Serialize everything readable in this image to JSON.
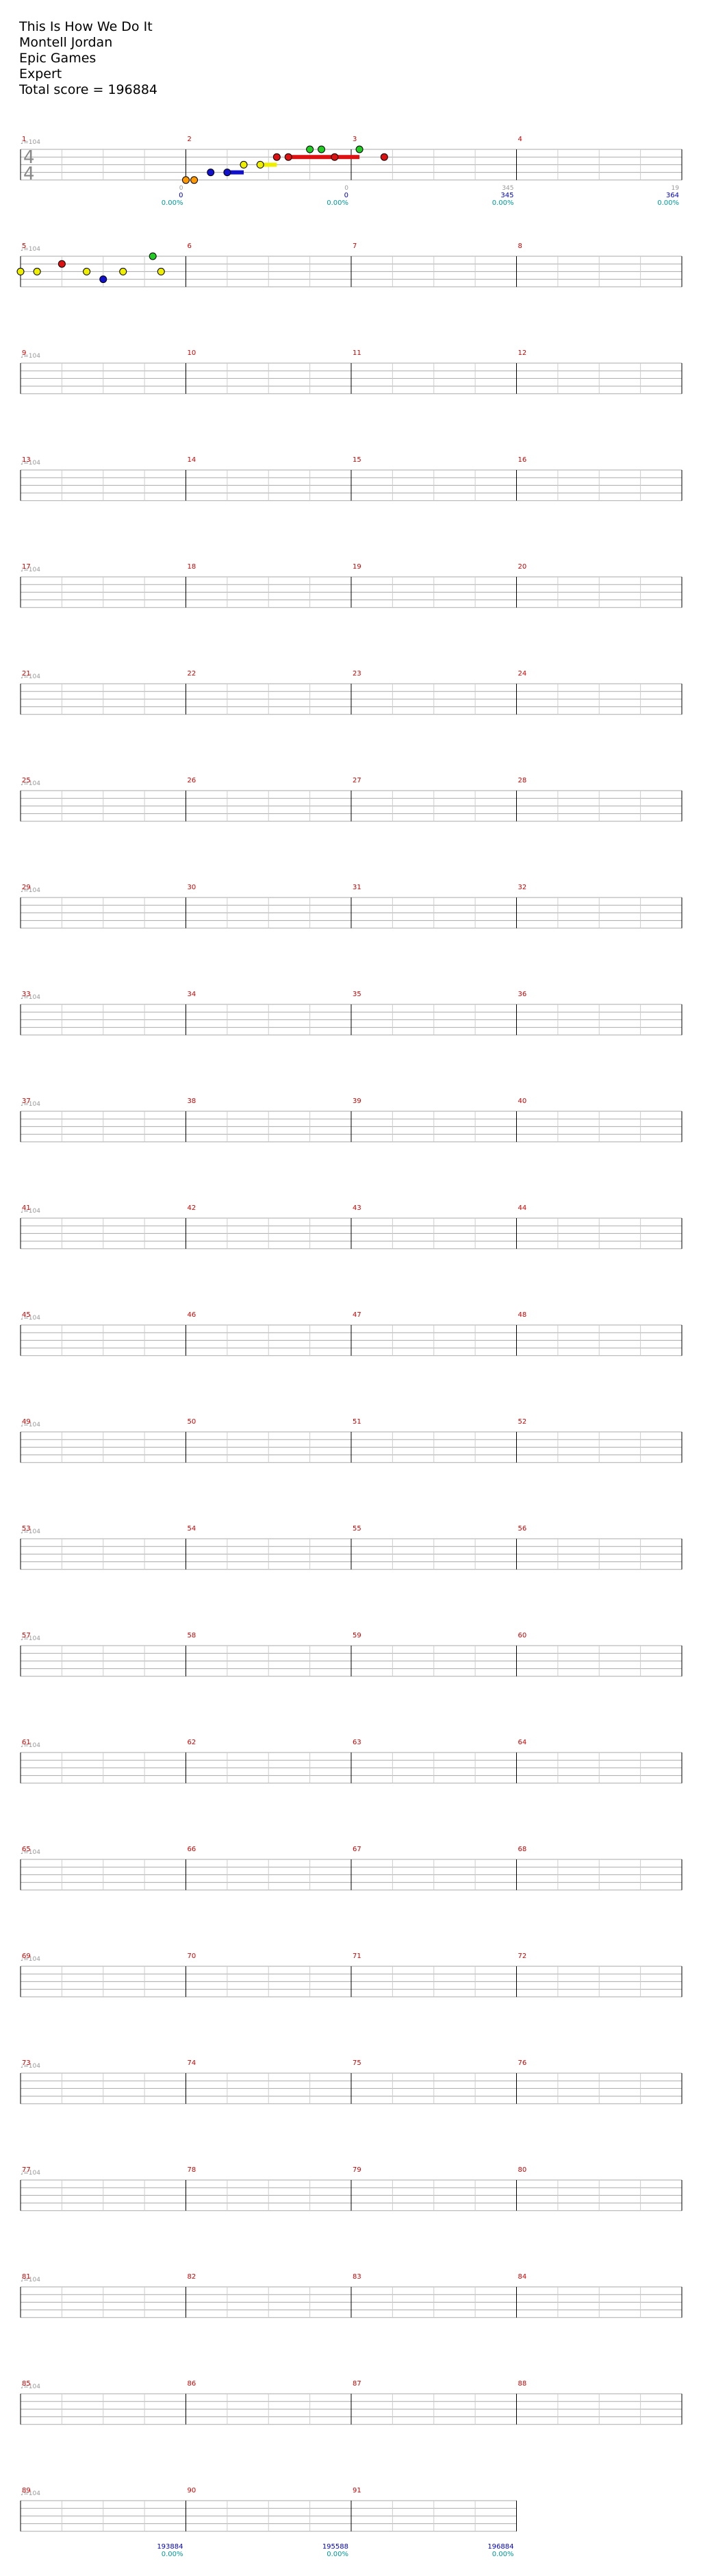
{
  "song": {
    "title": "This Is How We Do It",
    "artist": "Montell Jordan",
    "charter": "Epic Games",
    "difficulty": "Expert",
    "total_score_label": "Total score = 196884"
  },
  "time_signature": {
    "top": "4",
    "bottom": "4"
  },
  "tempo_label": "♩=104",
  "colors": {
    "green": "#22cc22",
    "red": "#dd1111",
    "yellow": "#eeee00",
    "blue": "#1111cc",
    "orange": "#ff9900",
    "overdrive_phrase": "#90ee90",
    "activation": "#8080ff",
    "measure_number": "#cc0000",
    "score": "#0000cc",
    "percent": "#009999",
    "gray": "#999999"
  },
  "measures": [
    {
      "n": "1",
      "notes": [],
      "gray": "0",
      "score": "0",
      "pct": "0.00%"
    },
    {
      "n": "2",
      "notes": [
        {
          "p": 0.0,
          "l": 4
        },
        {
          "p": 0.05,
          "l": 4
        },
        {
          "p": 0.15,
          "l": 3
        },
        {
          "p": 0.25,
          "l": 3
        },
        {
          "p": 0.35,
          "l": 2
        },
        {
          "p": 0.45,
          "l": 2
        },
        {
          "p": 0.55,
          "l": 1
        },
        {
          "p": 0.62,
          "l": 1
        },
        {
          "p": 0.75,
          "l": 0
        },
        {
          "p": 0.82,
          "l": 0
        },
        {
          "p": 0.9,
          "l": 1
        }
      ],
      "sust": [
        {
          "l": 1,
          "a": 0.62,
          "b": 1.05
        },
        {
          "l": 2,
          "a": 0.45,
          "b": 0.55
        },
        {
          "l": 3,
          "a": 0.25,
          "b": 0.35
        }
      ],
      "gray": "0",
      "score": "0",
      "pct": "0.00%"
    },
    {
      "n": "3",
      "notes": [
        {
          "p": 0.05,
          "l": 0
        },
        {
          "p": 0.2,
          "l": 1
        }
      ],
      "gray": "345",
      "score": "345",
      "pct": "0.00%"
    },
    {
      "n": "4",
      "notes": [],
      "gray": "19",
      "score": "364",
      "pct": "0.00%"
    },
    {
      "n": "5",
      "notes": [
        {
          "p": 0.0,
          "l": 2
        },
        {
          "p": 0.1,
          "l": 2
        },
        {
          "p": 0.25,
          "l": 1
        },
        {
          "p": 0.4,
          "l": 2
        },
        {
          "p": 0.5,
          "l": 3
        },
        {
          "p": 0.62,
          "l": 2
        },
        {
          "p": 0.8,
          "l": 0
        },
        {
          "p": 0.85,
          "l": 2
        }
      ],
      "gray": "",
      "score": "",
      "pct": ""
    }
  ],
  "footer": {
    "final_measures": [
      "89",
      "90",
      "91"
    ],
    "final_scores": [
      "193884",
      "195588",
      "196884"
    ],
    "final_pcts": [
      "0.00%",
      "0.00%",
      "0.00%"
    ]
  }
}
